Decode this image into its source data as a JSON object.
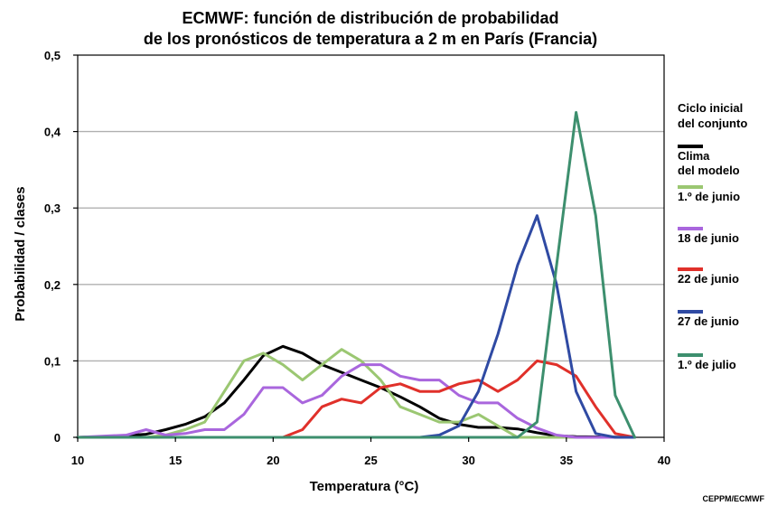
{
  "chart_data": {
    "type": "line",
    "title": [
      "ECMWF: función de distribución de probabilidad",
      "de los pronósticos de temperatura a 2 m en París (Francia)"
    ],
    "xlabel": "Temperatura (°C)",
    "ylabel": "Probabilidad / clases",
    "xlim": [
      10,
      40
    ],
    "ylim": [
      0,
      0.5
    ],
    "x_ticks": [
      10,
      15,
      20,
      25,
      30,
      35,
      40
    ],
    "x_tick_labels": [
      "10",
      "15",
      "20",
      "25",
      "30",
      "35",
      "40"
    ],
    "y_ticks": [
      0,
      0.1,
      0.2,
      0.3,
      0.4,
      0.5
    ],
    "y_tick_labels": [
      "0",
      "0,1",
      "0,2",
      "0,3",
      "0,4",
      "0,5"
    ],
    "grid": "horizontal",
    "legend_title": [
      "Ciclo inicial",
      "del conjunto"
    ],
    "legend_position": "right",
    "series": [
      {
        "name": "Clima del modelo",
        "label_lines": [
          "Clima",
          "del modelo"
        ],
        "color": "#000000",
        "points": [
          [
            10,
            0
          ],
          [
            11.5,
            0.001
          ],
          [
            13.5,
            0.004
          ],
          [
            14.5,
            0.01
          ],
          [
            15.5,
            0.017
          ],
          [
            16.5,
            0.027
          ],
          [
            17.5,
            0.045
          ],
          [
            18.5,
            0.075
          ],
          [
            19.5,
            0.107
          ],
          [
            20.5,
            0.119
          ],
          [
            21.5,
            0.11
          ],
          [
            22.5,
            0.095
          ],
          [
            23.5,
            0.085
          ],
          [
            24.5,
            0.075
          ],
          [
            25.5,
            0.065
          ],
          [
            26.5,
            0.053
          ],
          [
            27.5,
            0.04
          ],
          [
            28.5,
            0.025
          ],
          [
            29.5,
            0.017
          ],
          [
            30.5,
            0.013
          ],
          [
            31.5,
            0.013
          ],
          [
            32.5,
            0.011
          ],
          [
            33.5,
            0.006
          ],
          [
            34.5,
            0.002
          ],
          [
            35.5,
            0.001
          ],
          [
            38.5,
            0
          ]
        ]
      },
      {
        "name": "1.º de junio",
        "label_lines": [
          "1.º de junio"
        ],
        "color": "#9bc772",
        "points": [
          [
            10,
            0
          ],
          [
            13.5,
            0
          ],
          [
            14.5,
            0.003
          ],
          [
            15.5,
            0.01
          ],
          [
            16.5,
            0.02
          ],
          [
            17.5,
            0.06
          ],
          [
            18.5,
            0.1
          ],
          [
            19.5,
            0.11
          ],
          [
            20.5,
            0.095
          ],
          [
            21.5,
            0.075
          ],
          [
            22.5,
            0.095
          ],
          [
            23.5,
            0.115
          ],
          [
            24.5,
            0.1
          ],
          [
            25.5,
            0.075
          ],
          [
            26.5,
            0.04
          ],
          [
            27.5,
            0.03
          ],
          [
            28.5,
            0.02
          ],
          [
            29.5,
            0.02
          ],
          [
            30.5,
            0.03
          ],
          [
            31.5,
            0.015
          ],
          [
            32.5,
            0
          ],
          [
            38.5,
            0
          ]
        ]
      },
      {
        "name": "18 de junio",
        "label_lines": [
          "18 de junio"
        ],
        "color": "#a966dd",
        "points": [
          [
            10,
            0
          ],
          [
            12.5,
            0.003
          ],
          [
            13.5,
            0.01
          ],
          [
            14.5,
            0.003
          ],
          [
            15.5,
            0.005
          ],
          [
            16.5,
            0.01
          ],
          [
            17.5,
            0.01
          ],
          [
            18.5,
            0.03
          ],
          [
            19.5,
            0.065
          ],
          [
            20.5,
            0.065
          ],
          [
            21.5,
            0.045
          ],
          [
            22.5,
            0.055
          ],
          [
            23.5,
            0.08
          ],
          [
            24.5,
            0.095
          ],
          [
            25.5,
            0.095
          ],
          [
            26.5,
            0.08
          ],
          [
            27.5,
            0.075
          ],
          [
            28.5,
            0.075
          ],
          [
            29.5,
            0.055
          ],
          [
            30.5,
            0.045
          ],
          [
            31.5,
            0.045
          ],
          [
            32.5,
            0.025
          ],
          [
            33.5,
            0.012
          ],
          [
            34.5,
            0.003
          ],
          [
            35.5,
            0
          ],
          [
            38.5,
            0
          ]
        ]
      },
      {
        "name": "22 de junio",
        "label_lines": [
          "22 de junio"
        ],
        "color": "#e0302a",
        "points": [
          [
            10,
            0
          ],
          [
            20.5,
            0
          ],
          [
            21.5,
            0.01
          ],
          [
            22.5,
            0.04
          ],
          [
            23.5,
            0.05
          ],
          [
            24.5,
            0.045
          ],
          [
            25.5,
            0.065
          ],
          [
            26.5,
            0.07
          ],
          [
            27.5,
            0.06
          ],
          [
            28.5,
            0.06
          ],
          [
            29.5,
            0.07
          ],
          [
            30.5,
            0.075
          ],
          [
            31.5,
            0.06
          ],
          [
            32.5,
            0.075
          ],
          [
            33.5,
            0.1
          ],
          [
            34.5,
            0.095
          ],
          [
            35.5,
            0.08
          ],
          [
            36.5,
            0.04
          ],
          [
            37.5,
            0.005
          ],
          [
            38.5,
            0
          ]
        ]
      },
      {
        "name": "27 de junio",
        "label_lines": [
          "27 de junio"
        ],
        "color": "#2f4aa3",
        "points": [
          [
            10,
            0
          ],
          [
            27.5,
            0
          ],
          [
            28.5,
            0.003
          ],
          [
            29.5,
            0.015
          ],
          [
            30.5,
            0.06
          ],
          [
            31.5,
            0.135
          ],
          [
            32.5,
            0.225
          ],
          [
            33.5,
            0.29
          ],
          [
            34.5,
            0.2
          ],
          [
            35.5,
            0.06
          ],
          [
            36.5,
            0.005
          ],
          [
            37.5,
            0
          ],
          [
            38.5,
            0
          ]
        ]
      },
      {
        "name": "1.º de julio",
        "label_lines": [
          "1.º de julio"
        ],
        "color": "#3d8f6e",
        "points": [
          [
            10,
            0
          ],
          [
            32.5,
            0
          ],
          [
            33.5,
            0.02
          ],
          [
            34.5,
            0.225
          ],
          [
            35.5,
            0.425
          ],
          [
            36.5,
            0.29
          ],
          [
            37.5,
            0.055
          ],
          [
            38.5,
            0
          ]
        ]
      }
    ]
  },
  "credit": "CEPPM/ECMWF"
}
